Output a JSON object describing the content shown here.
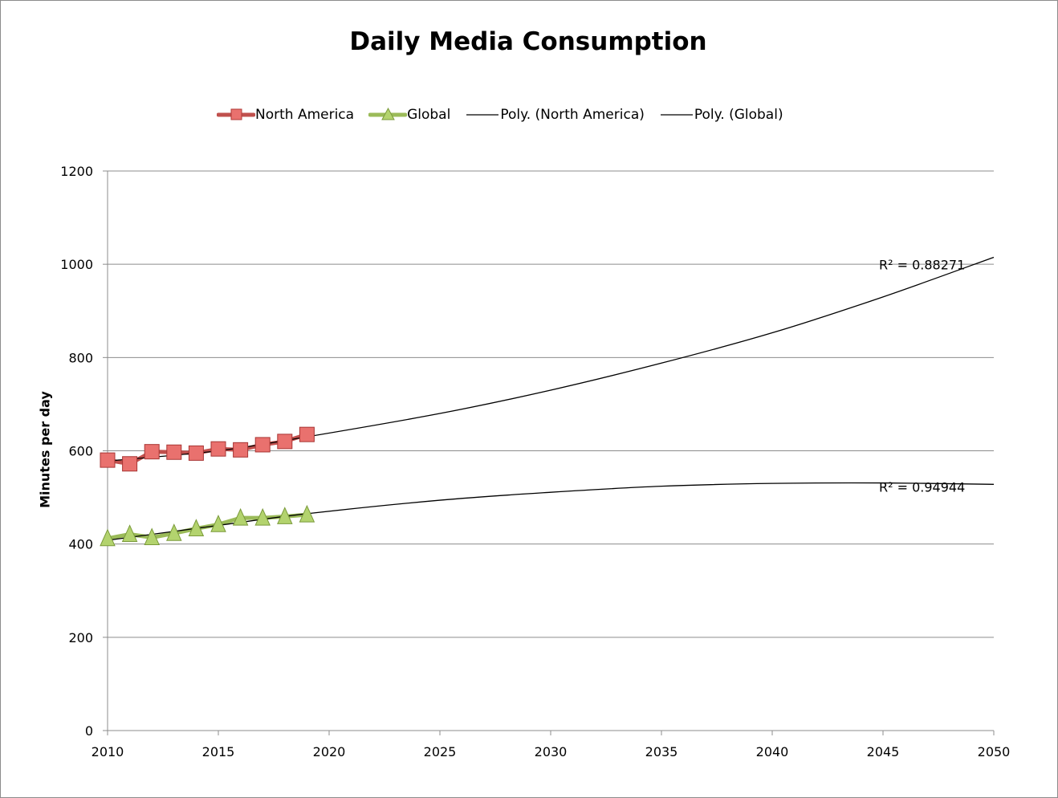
{
  "chart_data": {
    "type": "line",
    "title": "Daily Media Consumption",
    "xlabel": "",
    "ylabel": "Minutes per day",
    "xlim": [
      2010,
      2050
    ],
    "ylim": [
      0,
      1200
    ],
    "xticks": [
      2010,
      2015,
      2020,
      2025,
      2030,
      2035,
      2040,
      2045,
      2050
    ],
    "yticks": [
      0,
      200,
      400,
      600,
      800,
      1000,
      1200
    ],
    "grid": "horizontal",
    "legend_position": "top",
    "series": [
      {
        "name": "North America",
        "marker": "square",
        "color": "#e0504d",
        "x": [
          2010,
          2011,
          2012,
          2013,
          2014,
          2015,
          2016,
          2017,
          2018,
          2019
        ],
        "values": [
          580,
          572,
          598,
          597,
          595,
          604,
          602,
          613,
          620,
          635
        ]
      },
      {
        "name": "Global",
        "marker": "triangle",
        "color": "#9bbb59",
        "x": [
          2010,
          2011,
          2012,
          2013,
          2014,
          2015,
          2016,
          2017,
          2018,
          2019
        ],
        "values": [
          412,
          421,
          414,
          423,
          433,
          442,
          456,
          456,
          459,
          463
        ]
      }
    ],
    "trendlines": [
      {
        "name": "Poly. (North America)",
        "type": "polynomial",
        "color": "#000000",
        "x": [
          2010,
          2015,
          2019,
          2025,
          2030,
          2035,
          2040,
          2045,
          2050
        ],
        "values": [
          578,
          600,
          630,
          680,
          730,
          788,
          853,
          930,
          1015
        ],
        "r_squared_label": "R² = 0.88271"
      },
      {
        "name": "Poly. (Global)",
        "type": "polynomial",
        "color": "#000000",
        "x": [
          2010,
          2015,
          2019,
          2025,
          2030,
          2035,
          2040,
          2045,
          2050
        ],
        "values": [
          408,
          440,
          465,
          494,
          511,
          524,
          530,
          531,
          528
        ],
        "r_squared_label": "R² = 0.94944"
      }
    ]
  }
}
